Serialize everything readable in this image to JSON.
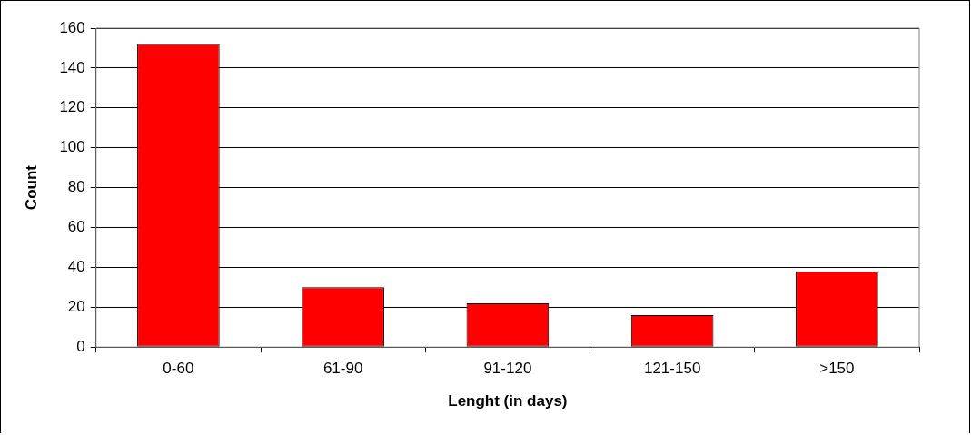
{
  "chart_data": {
    "type": "bar",
    "xlabel": "Lenght (in days)",
    "ylabel": "Count",
    "categories": [
      "0-60",
      "61-90",
      "91-120",
      "121-150",
      ">150"
    ],
    "values": [
      152,
      30,
      22,
      16,
      38
    ],
    "color": "#ff0000",
    "ylim": [
      0,
      160
    ],
    "yticks": [
      0,
      20,
      40,
      60,
      80,
      100,
      120,
      140,
      160
    ],
    "grid": "y",
    "legend": false
  }
}
